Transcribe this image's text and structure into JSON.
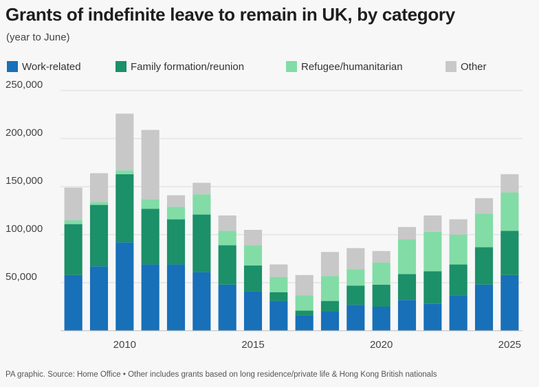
{
  "title": "Grants of indefinite leave to remain in UK, by category",
  "subtitle": "(year to June)",
  "footer": "PA graphic. Source: Home Office • Other includes grants based on long residence/private life & Hong Kong British nationals",
  "colors": {
    "work": "#1870b8",
    "family": "#1c9069",
    "refugee": "#82dca6",
    "other": "#c8c8c8",
    "grid": "#d8d8d8",
    "background": "#f7f7f7"
  },
  "chart_data": {
    "type": "bar",
    "stacked": true,
    "title": "Grants of indefinite leave to remain in UK, by category",
    "subtitle": "(year to June)",
    "categories": [
      "2008",
      "2009",
      "2010",
      "2011",
      "2012",
      "2013",
      "2014",
      "2015",
      "2016",
      "2017",
      "2018",
      "2019",
      "2020",
      "2021",
      "2022",
      "2023",
      "2024",
      "2025"
    ],
    "x_tick_labels": [
      "2010",
      "2015",
      "2020",
      "2025"
    ],
    "y_tick_labels": [
      "50,000",
      "100,000",
      "150,000",
      "200,000",
      "250,000"
    ],
    "ylim": [
      0,
      250000
    ],
    "grid": true,
    "legend_position": "top",
    "series": [
      {
        "name": "Work-related",
        "color": "#1870b8",
        "values": [
          58000,
          67000,
          92000,
          69000,
          69000,
          61000,
          48000,
          41000,
          31000,
          16000,
          20000,
          27000,
          25000,
          32000,
          28000,
          37000,
          48000,
          58000
        ]
      },
      {
        "name": "Family formation/reunion",
        "color": "#1c9069",
        "values": [
          53000,
          64000,
          71000,
          58000,
          47000,
          60000,
          41000,
          27000,
          9000,
          5000,
          11000,
          20000,
          23000,
          27000,
          34000,
          32000,
          39000,
          46000
        ]
      },
      {
        "name": "Refugee/humanitarian",
        "color": "#82dca6",
        "values": [
          4000,
          3000,
          4000,
          10000,
          13000,
          21000,
          15000,
          21000,
          16000,
          16000,
          26000,
          17000,
          23000,
          36000,
          41000,
          31000,
          35000,
          40000
        ]
      },
      {
        "name": "Other",
        "color": "#c8c8c8",
        "values": [
          34000,
          30000,
          59000,
          72000,
          12000,
          12000,
          16000,
          16000,
          13000,
          21000,
          25000,
          22000,
          12000,
          13000,
          17000,
          16000,
          16000,
          19000
        ]
      }
    ]
  }
}
